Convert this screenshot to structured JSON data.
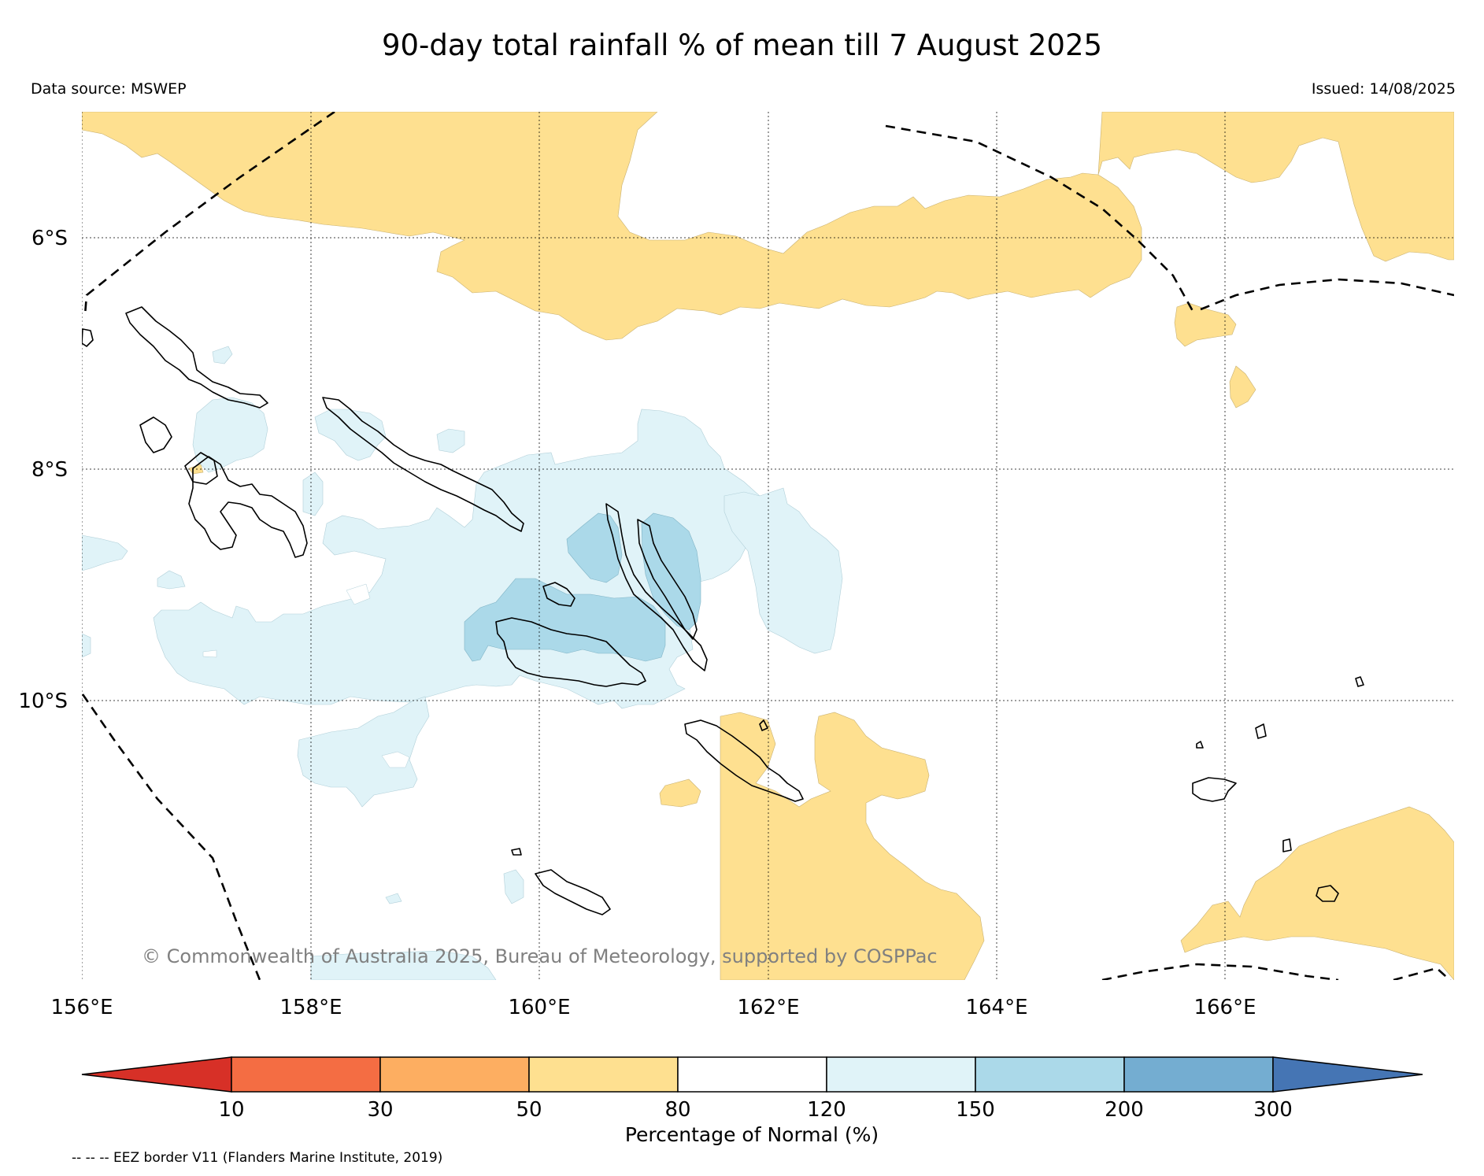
{
  "title": "90-day total rainfall % of mean till 7 August 2025",
  "data_source": "Data source: MSWEP",
  "issued": "Issued: 14/08/2025",
  "credit": "© Commonwealth of Australia 2025, Bureau of Meteorology, supported by COSPPac",
  "footnote": "-- -- -- EEZ border V11 (Flanders Marine Institute, 2019)",
  "map": {
    "longitude_labels": [
      "156°E",
      "158°E",
      "160°E",
      "162°E",
      "164°E",
      "166°E"
    ],
    "latitude_labels": [
      "6°S",
      "8°S",
      "10°S"
    ],
    "grid": "dotted"
  },
  "colorbar": {
    "label": "Percentage of Normal (%)",
    "ticks": [
      "10",
      "30",
      "50",
      "80",
      "120",
      "150",
      "200",
      "300"
    ],
    "extend": "both",
    "colors": [
      "#d73027",
      "#f46d43",
      "#fdae61",
      "#fee090",
      "#ffffff",
      "#e0f3f8",
      "#abd9e9",
      "#74add1",
      "#4575b4"
    ]
  },
  "legend_colors": {
    "below_normal_50_80": "#fee090",
    "above_normal_120_150": "#e0f3f8",
    "above_normal_150_200": "#abd9e9",
    "land_outline": "#000000",
    "eez_border": "#000000"
  }
}
